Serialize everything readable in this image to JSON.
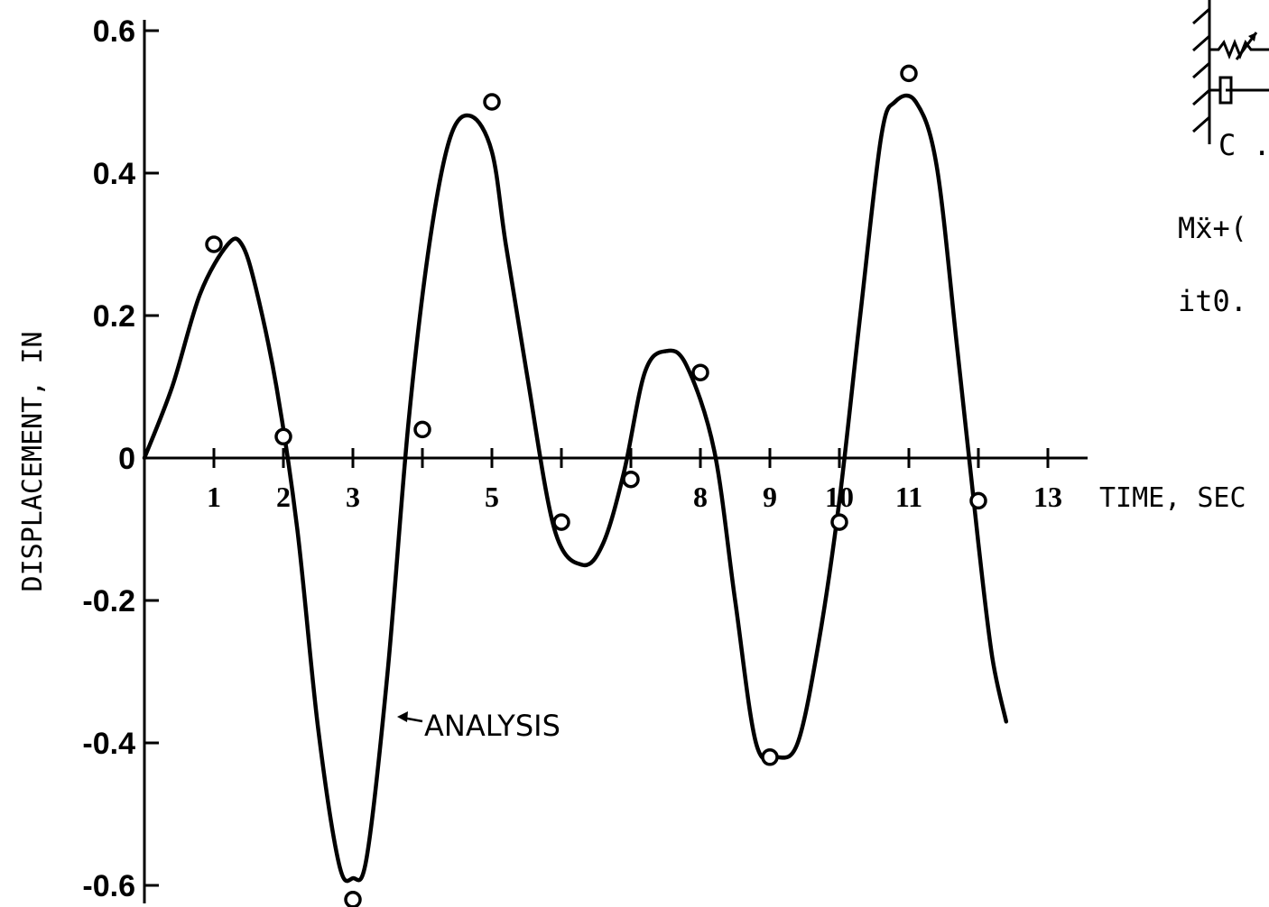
{
  "chart_data": {
    "type": "line",
    "title": "",
    "xlabel": "TIME, SEC",
    "ylabel": "DISPLACEMENT, IN",
    "xlim": [
      0,
      13
    ],
    "ylim": [
      -0.6,
      0.6
    ],
    "x_ticks": [
      {
        "value": 1,
        "label": "1"
      },
      {
        "value": 2,
        "label": "2"
      },
      {
        "value": 3,
        "label": "3"
      },
      {
        "value": 4,
        "label": ""
      },
      {
        "value": 5,
        "label": "5"
      },
      {
        "value": 6,
        "label": ""
      },
      {
        "value": 7,
        "label": ""
      },
      {
        "value": 8,
        "label": "8"
      },
      {
        "value": 9,
        "label": "9"
      },
      {
        "value": 10,
        "label": "10"
      },
      {
        "value": 11,
        "label": "11"
      },
      {
        "value": 12,
        "label": ""
      },
      {
        "value": 13,
        "label": "13"
      }
    ],
    "y_ticks": [
      {
        "value": 0.6,
        "label": "0.6"
      },
      {
        "value": 0.4,
        "label": "0.4"
      },
      {
        "value": 0.2,
        "label": "0.2"
      },
      {
        "value": 0,
        "label": "0"
      },
      {
        "value": -0.2,
        "label": "-0.2"
      },
      {
        "value": -0.4,
        "label": "-0.4"
      },
      {
        "value": -0.6,
        "label": "-0.6"
      }
    ],
    "series": [
      {
        "name": "ANALYSIS",
        "style": "line",
        "x": [
          0,
          0.4,
          0.8,
          1.2,
          1.4,
          1.6,
          1.9,
          2.2,
          2.5,
          2.8,
          3.0,
          3.2,
          3.5,
          3.8,
          4.1,
          4.4,
          4.7,
          5.0,
          5.2,
          5.5,
          5.9,
          6.3,
          6.6,
          6.9,
          7.2,
          7.5,
          7.8,
          8.2,
          8.5,
          8.8,
          9.1,
          9.4,
          9.7,
          10.0,
          10.3,
          10.6,
          10.8,
          11.1,
          11.4,
          11.7,
          12.0,
          12.2,
          12.4
        ],
        "y": [
          0,
          0.1,
          0.23,
          0.3,
          0.3,
          0.24,
          0.1,
          -0.1,
          -0.38,
          -0.57,
          -0.59,
          -0.56,
          -0.3,
          0.05,
          0.3,
          0.45,
          0.48,
          0.43,
          0.3,
          0.12,
          -0.1,
          -0.15,
          -0.12,
          -0.02,
          0.12,
          0.15,
          0.13,
          0.01,
          -0.2,
          -0.4,
          -0.42,
          -0.4,
          -0.26,
          -0.06,
          0.2,
          0.45,
          0.5,
          0.5,
          0.41,
          0.15,
          -0.12,
          -0.28,
          -0.37
        ]
      },
      {
        "name": "",
        "style": "points",
        "x": [
          1,
          2,
          3,
          4,
          5,
          6,
          7,
          8,
          9,
          10,
          11,
          12
        ],
        "y": [
          0.3,
          0.03,
          -0.62,
          0.04,
          0.5,
          -0.09,
          -0.03,
          0.12,
          -0.42,
          -0.09,
          0.54,
          -0.06
        ]
      }
    ],
    "annotations": {
      "analysis_label": "ANALYSIS",
      "equation_fragment": "Mẍ+(",
      "equation_fragment_2": "it0.",
      "inset_label": "C ."
    },
    "grid": false
  }
}
